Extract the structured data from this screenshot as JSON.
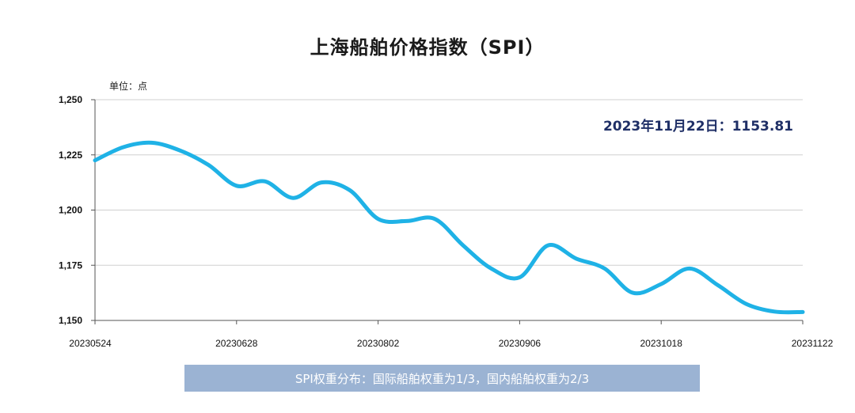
{
  "chart_data": {
    "type": "line",
    "title": "上海船舶价格指数（SPI）",
    "unit_label": "单位：点",
    "annotation": "2023年11月22日：1153.81",
    "footnote": "SPI权重分布：国际船舶权重为1/3，国内船舶权重为2/3",
    "ylim": [
      1150,
      1250
    ],
    "yticks": [
      1150,
      1175,
      1200,
      1225,
      1250
    ],
    "ytick_labels": [
      "1,150",
      "1,175",
      "1,200",
      "1,225",
      "1,250"
    ],
    "x_tick_labels": [
      "20230524",
      "20230628",
      "20230802",
      "20230906",
      "20231018",
      "20231122"
    ],
    "grid": true,
    "line_color": "#1fb2e6",
    "series": [
      {
        "name": "",
        "values": [
          1222.5,
          1228.5,
          1230.5,
          1227.0,
          1220.5,
          1211.0,
          1213.0,
          1205.5,
          1212.5,
          1209.0,
          1196.0,
          1195.0,
          1196.0,
          1184.0,
          1173.5,
          1169.5,
          1184.0,
          1178.0,
          1173.5,
          1162.5,
          1166.5,
          1173.5,
          1166.0,
          1157.5,
          1154.0,
          1153.81
        ]
      }
    ]
  }
}
